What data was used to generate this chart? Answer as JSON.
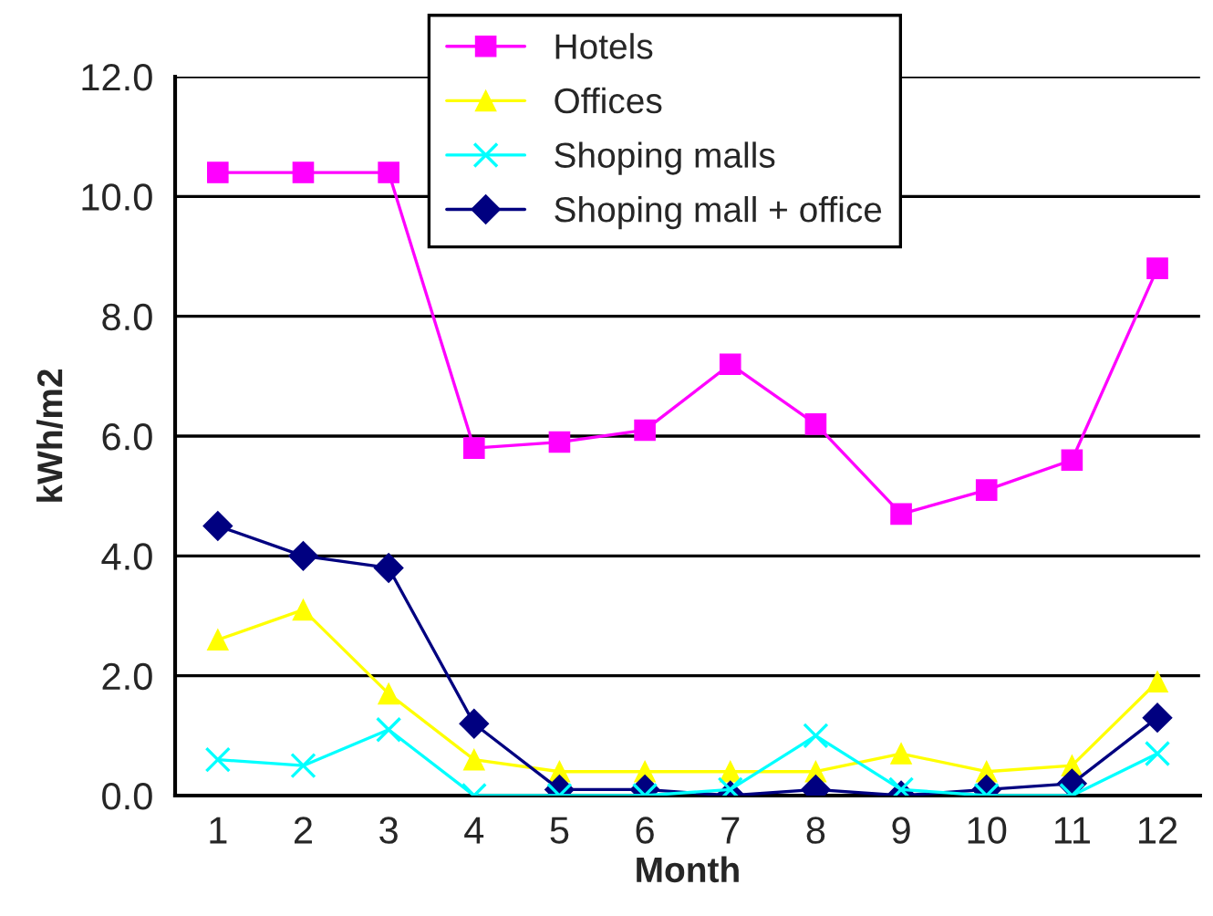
{
  "chart_data": {
    "type": "line",
    "xlabel": "Month",
    "ylabel": "kWh/m2",
    "categories": [
      "1",
      "2",
      "3",
      "4",
      "5",
      "6",
      "7",
      "8",
      "9",
      "10",
      "11",
      "12"
    ],
    "series": [
      {
        "name": "Hotels",
        "color": "#ff00ff",
        "marker": "square",
        "values": [
          10.4,
          10.4,
          10.4,
          5.8,
          5.9,
          6.1,
          7.2,
          6.2,
          4.7,
          5.1,
          5.6,
          8.8
        ]
      },
      {
        "name": "Offices",
        "color": "#ffff00",
        "marker": "triangle",
        "values": [
          2.6,
          3.1,
          1.7,
          0.6,
          0.4,
          0.4,
          0.4,
          0.4,
          0.7,
          0.4,
          0.5,
          1.9
        ]
      },
      {
        "name": "Shoping malls",
        "color": "#00ffff",
        "marker": "cross",
        "values": [
          0.6,
          0.5,
          1.1,
          0.0,
          0.0,
          0.0,
          0.1,
          1.0,
          0.1,
          0.0,
          0.0,
          0.7
        ]
      },
      {
        "name": "Shoping mall + office",
        "color": "#000080",
        "marker": "diamond",
        "values": [
          4.5,
          4.0,
          3.8,
          1.2,
          0.1,
          0.1,
          0.0,
          0.1,
          0.0,
          0.1,
          0.2,
          1.3
        ]
      }
    ],
    "ylim": [
      0,
      12
    ],
    "yticks": [
      {
        "value": 0,
        "label": "0.0"
      },
      {
        "value": 2,
        "label": "2.0"
      },
      {
        "value": 4,
        "label": "4.0"
      },
      {
        "value": 6,
        "label": "6.0"
      },
      {
        "value": 8,
        "label": "8.0"
      },
      {
        "value": 10,
        "label": "10.0"
      },
      {
        "value": 12,
        "label": "12.0"
      }
    ],
    "grid": "y",
    "legend": "top right",
    "line_style": "solid"
  }
}
